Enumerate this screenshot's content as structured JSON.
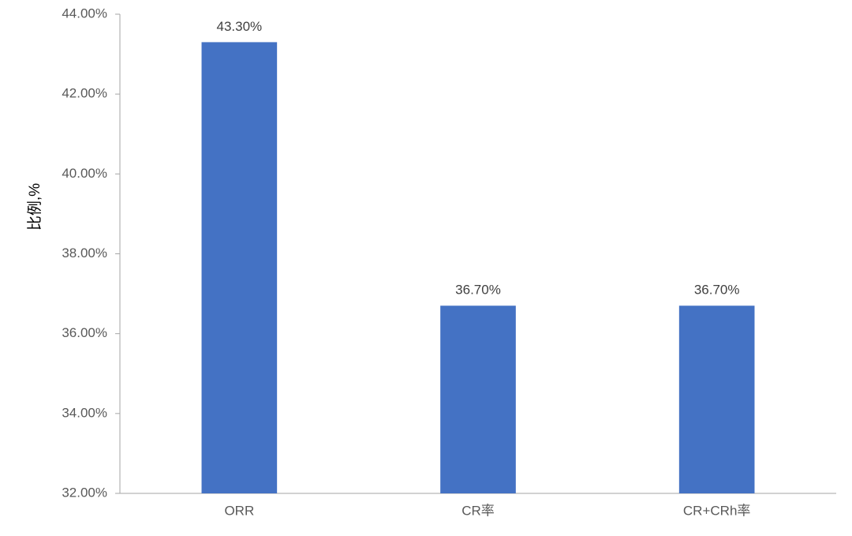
{
  "chart_data": {
    "type": "bar",
    "y_label": "比例,%",
    "categories": [
      "ORR",
      "CR率",
      "CR+CRh率"
    ],
    "values": [
      43.3,
      36.7,
      36.7
    ],
    "value_labels": [
      "43.30%",
      "36.70%",
      "36.70%"
    ],
    "color": "#4472c4",
    "ylim": [
      32,
      44
    ],
    "yticks": [
      {
        "value": 32,
        "label": "32.00%"
      },
      {
        "value": 34,
        "label": "34.00%"
      },
      {
        "value": 36,
        "label": "36.00%"
      },
      {
        "value": 38,
        "label": "38.00%"
      },
      {
        "value": 40,
        "label": "40.00%"
      },
      {
        "value": 42,
        "label": "42.00%"
      },
      {
        "value": 44,
        "label": "44.00%"
      }
    ],
    "grid": false
  }
}
